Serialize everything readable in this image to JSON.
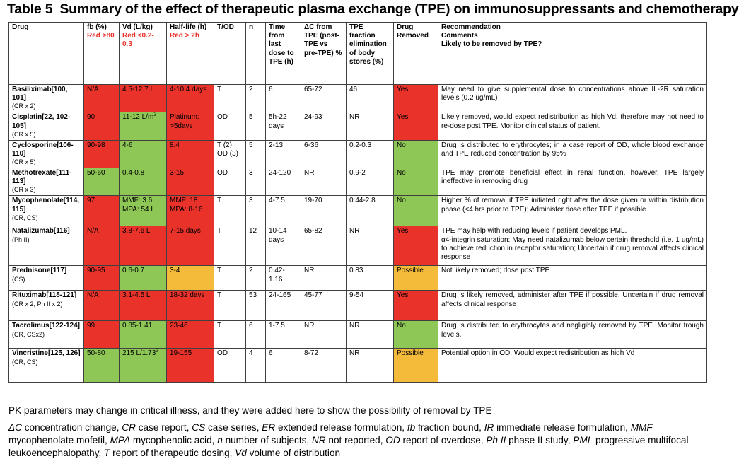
{
  "title": {
    "number": "Table 5",
    "text": "Summary of the effect of therapeutic plasma exchange (TPE) on immunosuppressants and chemotherapy"
  },
  "headers": {
    "drug": "Drug",
    "fb": {
      "label": "fb (%)",
      "note": "Red >80"
    },
    "vd": {
      "label": "Vd (L/kg)",
      "note": "Red <0.2-0.3"
    },
    "half_life": {
      "label": "Half-life (h)",
      "note": "Red > 2h"
    },
    "tod": "T/OD",
    "n": "n",
    "time": "Time from last dose to TPE (h)",
    "dc": "ΔC from TPE (post-TPE vs pre-TPE) %",
    "tpe_frac": "TPE fraction elimination of body stores (%)",
    "removed": "Drug Removed",
    "rec": {
      "line1": "Recommendation",
      "line2": "Comments",
      "line3": "Likely to be removed by TPE?"
    }
  },
  "rows": [
    {
      "drug": "Basiliximab[100, 101]",
      "sub": "(CR x 2)",
      "fb": "N/A",
      "vd": "4.5-12.7 L",
      "half": "4-10.4 days",
      "tod": "T",
      "n": "2",
      "time": "6",
      "dc": "65-72",
      "frac": "46",
      "removed": "Yes",
      "rec": "May need to give supplemental dose to concentrations above IL-2R saturation levels (0.2 ug/mL)",
      "colors": {
        "fb": "#e8322a",
        "vd": "#e8322a",
        "half": "#e8322a",
        "removed": "#e8322a"
      }
    },
    {
      "drug": "Cisplatin[22, 102-105]",
      "sub": "(CR x 5)",
      "fb": "90",
      "vd": "11-12 L/m",
      "vd_sup": "2",
      "half": "Platinum: >5days",
      "tod": "OD",
      "n": "5",
      "time": "5h-22 days",
      "dc": "24-93",
      "frac": "NR",
      "removed": "Yes",
      "rec": "Likely removed, would expect redistribution as high Vd, therefore may not need to re-dose post TPE. Monitor clinical status of patient.",
      "colors": {
        "fb": "#e8322a",
        "vd": "#8ec756",
        "half": "#e8322a",
        "removed": "#e8322a"
      }
    },
    {
      "drug": "Cyclosporine[106-110]",
      "sub": "(CR x 5)",
      "fb": "90-98",
      "vd": "4-6",
      "half": "8.4",
      "tod": "T (2) OD (3)",
      "n": "5",
      "time": "2-13",
      "dc": "6-36",
      "frac": "0.2-0.3",
      "removed": "No",
      "rec": "Drug is distributed to erythrocytes; in a case report of OD, whole blood exchange and TPE reduced concentration by 95%",
      "colors": {
        "fb": "#e8322a",
        "vd": "#8ec756",
        "half": "#e8322a",
        "removed": "#8ec756"
      }
    },
    {
      "drug": "Methotrexate[111-113]",
      "sub": "(CR x 3)",
      "fb": "50-60",
      "vd": "0.4-0.8",
      "half": "3-15",
      "tod": "OD",
      "n": "3",
      "time": "24-120",
      "dc": "NR",
      "frac": "0.9-2",
      "removed": "No",
      "rec": "TPE may promote beneficial effect in renal function, however, TPE largely ineffective in removing drug",
      "colors": {
        "fb": "#8ec756",
        "vd": "#8ec756",
        "half": "#e8322a",
        "removed": "#8ec756"
      }
    },
    {
      "drug": "Mycophenolate[114, 115]",
      "sub": "(CR, CS)",
      "fb": "97",
      "vd": "MMF: 3.6 MPA: 54 L",
      "half": "MMF: 18 MPA: 8-16",
      "tod": "T",
      "n": "3",
      "time": "4-7.5",
      "dc": "19-70",
      "frac": "0.44-2.8",
      "removed": "No",
      "rec": "Higher % of removal if TPE initiated right after the dose given or within distribution phase (<4 hrs prior to TPE); Administer dose after TPE if possible",
      "colors": {
        "fb": "#e8322a",
        "vd": "#8ec756",
        "half": "#e8322a",
        "removed": "#8ec756"
      }
    },
    {
      "drug": "Natalizumab[116]",
      "sub": "(Ph II)",
      "fb": "N/A",
      "vd": "3.8-7.6 L",
      "half": "7-15 days",
      "tod": "T",
      "n": "12",
      "time": "10-14 days",
      "dc": "65-82",
      "frac": "NR",
      "removed": "Yes",
      "rec": "TPE may help with reducing levels if patient develops PML.",
      "rec2": "α4-integrin saturation: May need natalizumab below certain threshold (i.e. 1 ug/mL) to achieve reduction in receptor saturation; Uncertain if drug removal affects clinical response",
      "colors": {
        "fb": "#e8322a",
        "vd": "#e8322a",
        "half": "#e8322a",
        "removed": "#e8322a"
      }
    },
    {
      "drug": "Prednisone[117]",
      "sub": "(CS)",
      "fb": "90-95",
      "vd": "0.6-0.7",
      "half": "3-4",
      "tod": "T",
      "n": "2",
      "time": "0.42-1.16",
      "dc": "NR",
      "frac": "0.83",
      "removed": "Possible",
      "rec": "Not likely removed; dose post TPE",
      "colors": {
        "fb": "#e8322a",
        "vd": "#8ec756",
        "half": "#f4bb3a",
        "removed": "#f4bb3a"
      }
    },
    {
      "drug": "Rituximab[118-121]",
      "sub": "(CR x 2, Ph II x 2)",
      "fb": "N/A",
      "vd": "3.1-4.5 L",
      "half": "18-32 days",
      "tod": "T",
      "n": "53",
      "time": "24-165",
      "dc": "45-77",
      "frac": "9-54",
      "removed": "Yes",
      "rec": "Drug is likely removed, administer after TPE if possible. Uncertain if drug removal affects clinical response",
      "colors": {
        "fb": "#e8322a",
        "vd": "#e8322a",
        "half": "#e8322a",
        "removed": "#e8322a"
      }
    },
    {
      "drug": "Tacrolimus[122-124]",
      "sub": "(CR, CSx2)",
      "fb": "99",
      "vd": "0.85-1.41",
      "half": "23-46",
      "tod": "T",
      "n": "6",
      "time": "1-7.5",
      "dc": "NR",
      "frac": "NR",
      "removed": "No",
      "rec": "Drug is distributed to erythrocytes and negligibly removed by TPE. Monitor trough levels.",
      "colors": {
        "fb": "#e8322a",
        "vd": "#8ec756",
        "half": "#e8322a",
        "removed": "#8ec756"
      }
    },
    {
      "drug": "Vincristine[125, 126]",
      "sub": "(CR, CS)",
      "fb": "50-80",
      "vd": "215 L/1.73",
      "vd_sup": "2",
      "half": "19-155",
      "tod": "OD",
      "n": "4",
      "time": "6",
      "dc": "8-72",
      "frac": "NR",
      "removed": "Possible",
      "rec": "Potential option in OD. Would expect redistribution as high Vd",
      "colors": {
        "fb": "#8ec756",
        "vd": "#8ec756",
        "half": "#e8322a",
        "removed": "#f4bb3a"
      }
    }
  ],
  "footnotes": {
    "pk_note": "PK parameters may change in critical illness, and they were added here to show the possibility of removal by TPE",
    "abbreviations": [
      {
        "term": "ΔC",
        "def": "concentration change"
      },
      {
        "term": "CR",
        "def": "case report"
      },
      {
        "term": "CS",
        "def": "case series"
      },
      {
        "term": "ER",
        "def": "extended release formulation"
      },
      {
        "term": "fb",
        "def": "fraction bound"
      },
      {
        "term": "IR",
        "def": "immediate release formulation"
      },
      {
        "term": "MMF",
        "def": "mycophenolate mofetil"
      },
      {
        "term": "MPA",
        "def": "mycophenolic acid"
      },
      {
        "term": "n",
        "def": "number of subjects"
      },
      {
        "term": "NR",
        "def": "not reported"
      },
      {
        "term": "OD",
        "def": "report of overdose"
      },
      {
        "term": "Ph II",
        "def": "phase II study"
      },
      {
        "term": "PML",
        "def": "progressive multifocal leukoencephalopathy"
      },
      {
        "term": "T",
        "def": "report of therapeutic dosing"
      },
      {
        "term": "Vd",
        "def": "volume of distribution"
      }
    ]
  }
}
